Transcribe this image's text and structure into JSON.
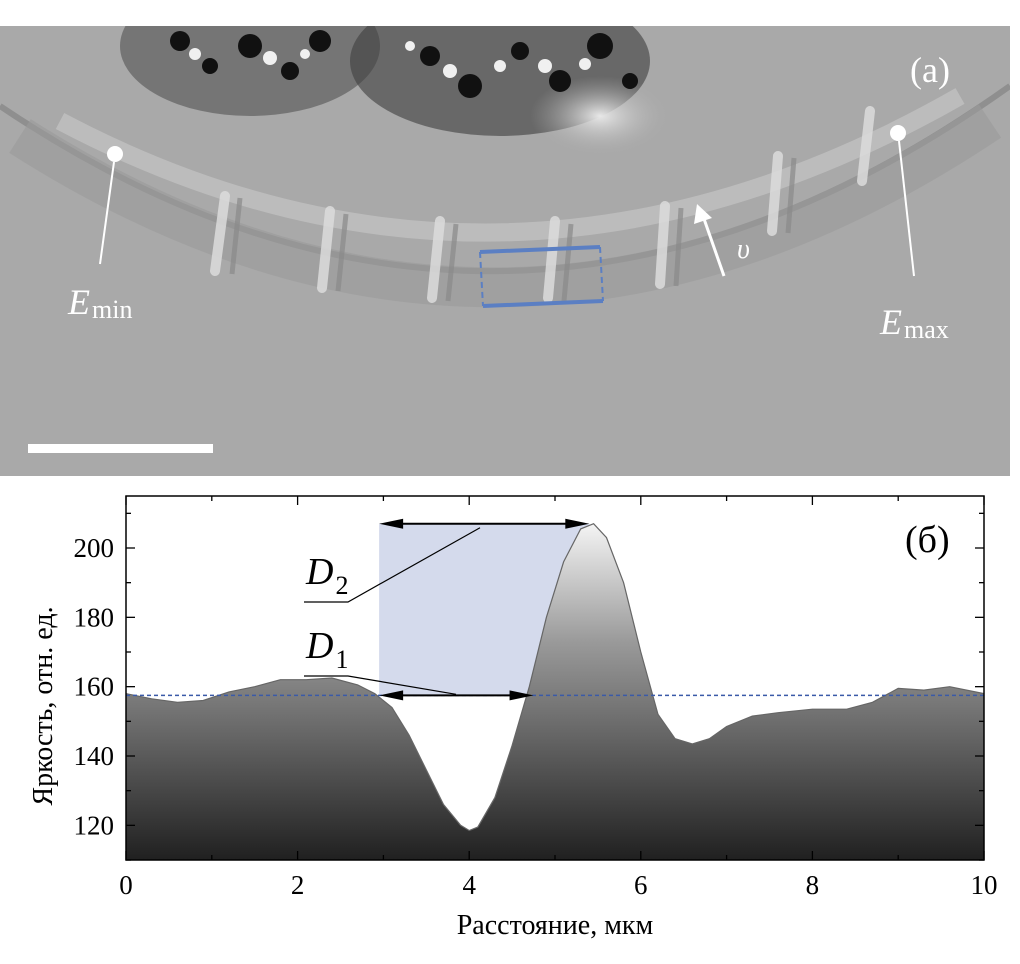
{
  "panel_a": {
    "label": "(a)",
    "e_min": {
      "symbol": "E",
      "sub": "min"
    },
    "e_max": {
      "symbol": "E",
      "sub": "max"
    },
    "velocity": "υ",
    "colors": {
      "background": "#a9a9a9",
      "roi": "#5b7fc3",
      "marker": "#ffffff",
      "scale_bar": "#ffffff"
    }
  },
  "chart_data": {
    "type": "area",
    "panel_label": "(б)",
    "xlabel": "Расстояние, мкм",
    "ylabel": "Яркость, отн. ед.",
    "xlim": [
      0,
      10
    ],
    "ylim": [
      110,
      215
    ],
    "xticks": [
      0,
      2,
      4,
      6,
      8,
      10
    ],
    "yticks": [
      120,
      140,
      160,
      180,
      200
    ],
    "grid": false,
    "baseline": 157.5,
    "series": [
      {
        "x": [
          0,
          0.3,
          0.6,
          0.9,
          1.2,
          1.5,
          1.8,
          2.1,
          2.4,
          2.7,
          2.9,
          3.1,
          3.3,
          3.5,
          3.7,
          3.9,
          4.0,
          4.1,
          4.3,
          4.5,
          4.7,
          4.9,
          5.1,
          5.3,
          5.45,
          5.6,
          5.8,
          6.0,
          6.2,
          6.4,
          6.6,
          6.8,
          7.0,
          7.3,
          7.6,
          8.0,
          8.4,
          8.7,
          9.0,
          9.3,
          9.6,
          10.0
        ],
        "values": [
          158,
          156.5,
          155.5,
          156,
          158.5,
          160,
          162,
          162,
          162.5,
          160.5,
          158,
          154,
          146,
          136,
          126,
          120,
          118.5,
          119.5,
          128,
          143,
          160,
          180,
          196,
          205.5,
          207,
          203,
          190,
          170,
          152,
          145,
          143.5,
          145,
          148.5,
          151.5,
          152.5,
          153.5,
          153.5,
          155.5,
          159.5,
          159,
          160,
          158
        ]
      }
    ],
    "annotations": {
      "d1": {
        "symbol": "D",
        "sub": "1",
        "x_range": [
          2.95,
          4.75
        ],
        "y": 157.5
      },
      "d2": {
        "symbol": "D",
        "sub": "2",
        "x_range": [
          2.95,
          5.4
        ],
        "y": 207
      },
      "band_x_range": [
        2.95,
        5.4
      ]
    },
    "colors": {
      "fill_top": "#9a9a9a",
      "fill_bottom": "#202020",
      "baseline": "#3a5aa8",
      "band": "#c5cde6",
      "line": "#666666"
    }
  }
}
